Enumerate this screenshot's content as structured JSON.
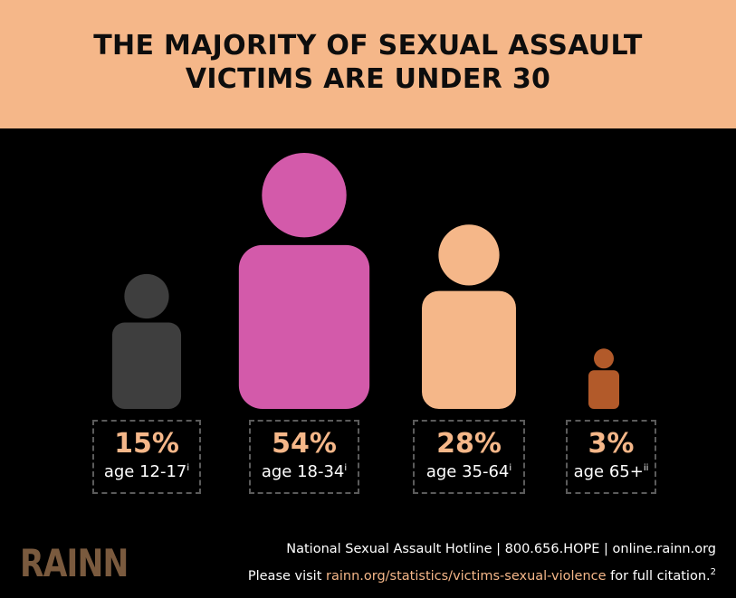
{
  "title_line1": "THE MAJORITY OF SEXUAL ASSAULT",
  "title_line2": "VICTIMS ARE UNDER 30",
  "chart_data": {
    "type": "pictograph",
    "title": "THE MAJORITY OF SEXUAL ASSAULT VICTIMS ARE UNDER 30",
    "categories": [
      "age 12-17",
      "age 18-34",
      "age 35-64",
      "age 65+"
    ],
    "values": [
      15,
      54,
      28,
      3
    ],
    "value_labels": [
      "15%",
      "54%",
      "28%",
      "3%"
    ],
    "footnotes": [
      "i",
      "i",
      "i",
      "ii"
    ],
    "colors": [
      "#3e3e3e",
      "#d35aaa",
      "#f5b789",
      "#b25a2a"
    ]
  },
  "footer": {
    "hotline": "National Sexual Assault Hotline | 800.656.HOPE | online.rainn.org",
    "citation_prefix": "Please visit ",
    "citation_link": "rainn.org/statistics/victims-sexual-violence",
    "citation_suffix": " for full citation.",
    "citation_mark": "2"
  },
  "logo": "RAINN",
  "colors": {
    "header_bg": "#f5b789",
    "panel_bg": "#000000",
    "box_border": "#5b5b5b"
  }
}
